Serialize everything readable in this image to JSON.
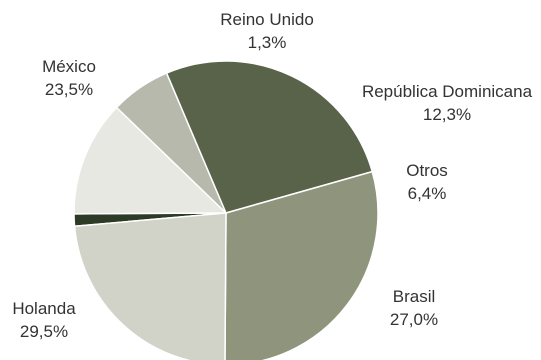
{
  "chart_data": {
    "type": "pie",
    "title": "",
    "slices": [
      {
        "label": "Reino Unido",
        "value": 1.3,
        "display": "1,3%",
        "color": "#2d3a25"
      },
      {
        "label": "República Dominicana",
        "value": 12.3,
        "display": "12,3%",
        "color": "#e7e8e2"
      },
      {
        "label": "Otros",
        "value": 6.4,
        "display": "6,4%",
        "color": "#b7b9ac"
      },
      {
        "label": "Brasil",
        "value": 27.0,
        "display": "27,0%",
        "color": "#58634a"
      },
      {
        "label": "Holanda",
        "value": 29.5,
        "display": "29,5%",
        "color": "#8e957c"
      },
      {
        "label": "México",
        "value": 23.5,
        "display": "23,5%",
        "color": "#d1d2c8"
      }
    ]
  }
}
